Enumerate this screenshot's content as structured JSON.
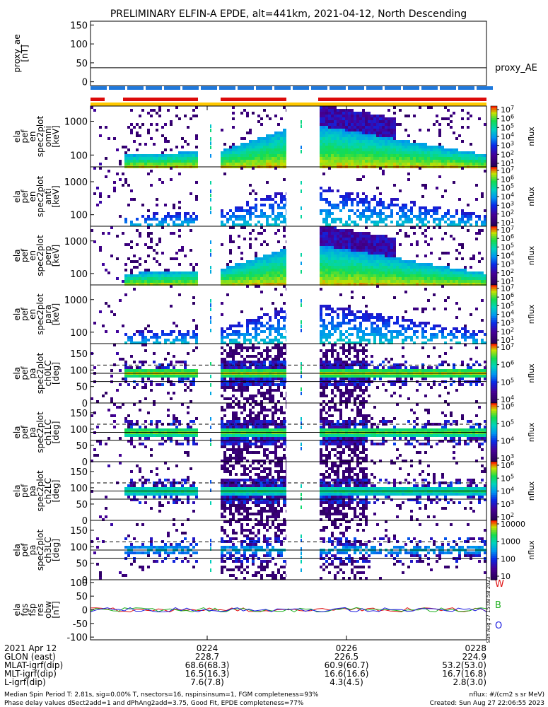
{
  "title": "PRELIMINARY ELFIN-A EPDE, alt=441km, 2021-04-12, North Descending",
  "colors": {
    "spin_blue": "#1e78dc",
    "science_red": "#dc0a0a",
    "sunlight_yellow": "#ffc800",
    "fgs_red": "#e01010",
    "fgs_green": "#20b020",
    "fgs_blue": "#2020e0"
  },
  "chart_data": [
    {
      "type": "line",
      "ylabel": [
        "proxy_ae",
        "[nT]"
      ],
      "yticks": [
        "150",
        "100",
        "50",
        "0"
      ],
      "ylim": [
        -10,
        160
      ],
      "series": [
        {
          "name": "proxy_AE",
          "values": [
            37,
            37
          ]
        }
      ],
      "legend": "proxy_AE"
    },
    {
      "type": "heatmap",
      "ylabel": [
        "ela",
        "pef",
        "en",
        "spec2plot",
        "omni",
        "[keV]"
      ],
      "yticks": [
        "1000",
        "100"
      ],
      "yscale": "log",
      "colorbar": {
        "label": "nflux",
        "ticks": [
          "10^7",
          "10^6",
          "10^5",
          "10^4",
          "10^3",
          "10^2",
          "10^1"
        ]
      }
    },
    {
      "type": "heatmap",
      "ylabel": [
        "ela",
        "pef",
        "en",
        "spec2plot",
        "anti",
        "[keV]"
      ],
      "yticks": [
        "1000",
        "100"
      ],
      "yscale": "log",
      "colorbar": {
        "label": "nflux",
        "ticks": [
          "10^7",
          "10^6",
          "10^5",
          "10^4",
          "10^3",
          "10^2",
          "10^1"
        ]
      }
    },
    {
      "type": "heatmap",
      "ylabel": [
        "ela",
        "pef",
        "en",
        "spec2plot",
        "perp",
        "[keV]"
      ],
      "yticks": [
        "1000",
        "100"
      ],
      "yscale": "log",
      "colorbar": {
        "label": "nflux",
        "ticks": [
          "10^7",
          "10^6",
          "10^5",
          "10^4",
          "10^3",
          "10^2",
          "10^1"
        ]
      }
    },
    {
      "type": "heatmap",
      "ylabel": [
        "ela",
        "pef",
        "en",
        "spec2plot",
        "para",
        "[keV]"
      ],
      "yticks": [
        "1000",
        "100"
      ],
      "yscale": "log",
      "colorbar": {
        "label": "nflux",
        "ticks": [
          "10^7",
          "10^6",
          "10^5",
          "10^4",
          "10^3",
          "10^2",
          "10^1"
        ]
      }
    },
    {
      "type": "heatmap",
      "ylabel": [
        "ela",
        "pef",
        "pa",
        "spec2plot",
        "ch0LC",
        "[deg]"
      ],
      "yticks": [
        "150",
        "100",
        "50",
        "0"
      ],
      "ylim": [
        0,
        180
      ],
      "colorbar": {
        "label": "nflux",
        "ticks": [
          "10^7",
          "10^6",
          "10^5",
          "10^4"
        ]
      }
    },
    {
      "type": "heatmap",
      "ylabel": [
        "ela",
        "pef",
        "pa",
        "spec2plot",
        "ch1LC",
        "[deg]"
      ],
      "yticks": [
        "150",
        "100",
        "50",
        "0"
      ],
      "ylim": [
        0,
        180
      ],
      "colorbar": {
        "label": "nflux",
        "ticks": [
          "10^6",
          "10^5",
          "10^4",
          "10^3"
        ]
      }
    },
    {
      "type": "heatmap",
      "ylabel": [
        "ela",
        "pef",
        "pa",
        "spec2plot",
        "ch2LC",
        "[deg]"
      ],
      "yticks": [
        "150",
        "100",
        "50",
        "0"
      ],
      "ylim": [
        0,
        180
      ],
      "colorbar": {
        "label": "nflux",
        "ticks": [
          "10^6",
          "10^5",
          "10^4",
          "10^3",
          "10^2"
        ]
      }
    },
    {
      "type": "heatmap",
      "ylabel": [
        "ela",
        "pef",
        "pa",
        "spec2plot",
        "ch3LC",
        "[deg]"
      ],
      "yticks": [
        "150",
        "100",
        "50",
        "0"
      ],
      "ylim": [
        0,
        180
      ],
      "colorbar": {
        "label": "nflux",
        "ticks": [
          "10000",
          "1000",
          "100",
          "10"
        ]
      }
    },
    {
      "type": "line",
      "ylabel": [
        "ela",
        "fgs",
        "fsp",
        "res",
        "obw",
        "[nT]"
      ],
      "yticks": [
        "100",
        "50",
        "0",
        "-50",
        "-100"
      ],
      "ylim": [
        -110,
        110
      ],
      "legend": [
        "W",
        "B",
        "O"
      ],
      "side_note": "Sun Aug 27 15:08:58 2023"
    }
  ],
  "footer_rows": [
    {
      "label": "2021 Apr 12",
      "values": [
        "0224",
        "0226",
        "0228"
      ]
    },
    {
      "label": "GLON (east)",
      "values": [
        "228.7",
        "226.5",
        "224.9"
      ]
    },
    {
      "label": "MLAT-igrf(dip)",
      "values": [
        "68.6(68.3)",
        "60.9(60.7)",
        "53.2(53.0)"
      ]
    },
    {
      "label": "MLT-igrf(dip)",
      "values": [
        "16.5(16.3)",
        "16.6(16.6)",
        "16.7(16.8)"
      ]
    },
    {
      "label": "L-igrf(dip)",
      "values": [
        "7.6(7.8)",
        "4.3(4.5)",
        "2.8(3.0)"
      ]
    }
  ],
  "notes": {
    "line1_left": "Median Spin Period T: 2.81s, sig=0.00% T, nsectors=16, nspinsinsum=1, FGM completeness=93%",
    "line2_left": "Phase delay values dSect2add=1 and dPhAng2add=3.75, Good Fit, EPDE completeness=77%",
    "line1_right": "nflux: #/(cm2 s sr MeV)",
    "line2_right": "Created: Sun Aug 27 22:06:55 2023"
  }
}
